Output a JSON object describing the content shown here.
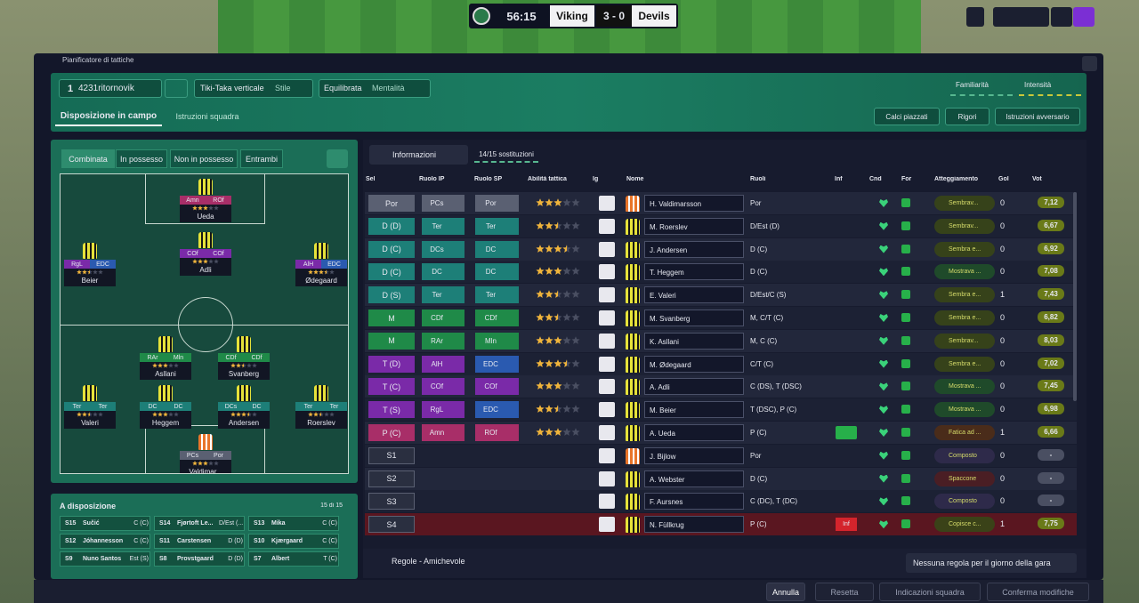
{
  "scoreboard": {
    "time": "56:15",
    "home": "Viking",
    "score": "3 - 0",
    "away": "Devils"
  },
  "breadcrumb": "Pianificatore di tattiche",
  "toolbar": {
    "formation_number": "1",
    "formation": "4231ritornovik",
    "style": "Tiki-Taka verticale",
    "style_label": "Stile",
    "mentality": "Equilibrata",
    "mentality_label": "Mentalità",
    "familiarity": "Familiarità",
    "intensity": "Intensità"
  },
  "tabs": [
    "Disposizione in campo",
    "Istruzioni squadra"
  ],
  "actions": [
    "Calci piazzati",
    "Rigori",
    "Istruzioni avversario"
  ],
  "pitch_tabs": [
    "Combinata",
    "In possesso",
    "Non in possesso",
    "Entrambi"
  ],
  "pitch_players": [
    {
      "name": "Ueda",
      "roles": [
        "Amn",
        "ROf"
      ],
      "stars": 3
    },
    {
      "name": "Beier",
      "roles": [
        "RgL",
        "EDC"
      ],
      "stars": 2.5
    },
    {
      "name": "Adli",
      "roles": [
        "COf",
        "COf"
      ],
      "stars": 3
    },
    {
      "name": "Ødegaard",
      "roles": [
        "AlH",
        "EDC"
      ],
      "stars": 3.5
    },
    {
      "name": "Asllani",
      "roles": [
        "RAr",
        "Mln"
      ],
      "stars": 3
    },
    {
      "name": "Svanberg",
      "roles": [
        "CDf",
        "CDf"
      ],
      "stars": 2.5
    },
    {
      "name": "Valeri",
      "roles": [
        "Ter",
        "Ter"
      ],
      "stars": 2.5
    },
    {
      "name": "Heggem",
      "roles": [
        "DC",
        "DC"
      ],
      "stars": 3
    },
    {
      "name": "Andersen",
      "roles": [
        "DCs",
        "DC"
      ],
      "stars": 3.5
    },
    {
      "name": "Roerslev",
      "roles": [
        "Ter",
        "Ter"
      ],
      "stars": 2.5
    },
    {
      "name": "Valdimar...",
      "roles": [
        "PCs",
        "Por"
      ],
      "stars": 3
    }
  ],
  "bench": {
    "title": "A disposizione",
    "count": "15 di 15",
    "players": [
      [
        "S15",
        "Sučić",
        "C (C)"
      ],
      [
        "S14",
        "Fjørtoft Le...",
        "D/Est (..."
      ],
      [
        "S13",
        "Mika",
        "C (C)"
      ],
      [
        "S12",
        "Jóhannesson",
        "C (C)"
      ],
      [
        "S11",
        "Carstensen",
        "D (D)"
      ],
      [
        "S10",
        "Kjærgaard",
        "C (C)"
      ],
      [
        "S9",
        "Nuno Santos",
        "Est (S)"
      ],
      [
        "S8",
        "Provstgaard",
        "D (D)"
      ],
      [
        "S7",
        "Albert",
        "T (C)"
      ]
    ]
  },
  "table": {
    "view": "Informazioni",
    "subs": "14/15 sostituzioni",
    "headers": [
      "Sel",
      "Ruolo IP",
      "Ruolo SP",
      "Abilità tattica",
      "Ig",
      "Nome",
      "Ruoli",
      "Inf",
      "Cnd",
      "For",
      "Atteggiamento",
      "Gol",
      "Vot"
    ],
    "rows": [
      {
        "sel": "Por",
        "ip": "PCs",
        "sp": "Por",
        "stars": 3,
        "name": "H. Valdimarsson",
        "roles": "Por",
        "mood": "Sembrav...",
        "gol": "0",
        "vot": "7,12"
      },
      {
        "sel": "D (D)",
        "ip": "Ter",
        "sp": "Ter",
        "stars": 2.5,
        "name": "M. Roerslev",
        "roles": "D/Est (D)",
        "mood": "Sembrav...",
        "gol": "0",
        "vot": "6,67"
      },
      {
        "sel": "D (C)",
        "ip": "DCs",
        "sp": "DC",
        "stars": 3.5,
        "name": "J. Andersen",
        "roles": "D (C)",
        "mood": "Sembra e...",
        "gol": "0",
        "vot": "6,92"
      },
      {
        "sel": "D (C)",
        "ip": "DC",
        "sp": "DC",
        "stars": 3,
        "name": "T. Heggem",
        "roles": "D (C)",
        "mood": "Mostrava ...",
        "gol": "0",
        "vot": "7,08"
      },
      {
        "sel": "D (S)",
        "ip": "Ter",
        "sp": "Ter",
        "stars": 2.5,
        "name": "E. Valeri",
        "roles": "D/Est/C (S)",
        "mood": "Sembra e...",
        "gol": "1",
        "vot": "7,43"
      },
      {
        "sel": "M",
        "ip": "CDf",
        "sp": "CDf",
        "stars": 2.5,
        "name": "M. Svanberg",
        "roles": "M, C/T (C)",
        "mood": "Sembra e...",
        "gol": "0",
        "vot": "6,82"
      },
      {
        "sel": "M",
        "ip": "RAr",
        "sp": "Mln",
        "stars": 3,
        "name": "K. Asllani",
        "roles": "M, C (C)",
        "mood": "Sembrav...",
        "gol": "0",
        "vot": "8,03"
      },
      {
        "sel": "T (D)",
        "ip": "AlH",
        "sp": "EDC",
        "stars": 3.5,
        "name": "M. Ødegaard",
        "roles": "C/T (C)",
        "mood": "Sembra e...",
        "gol": "0",
        "vot": "7,02"
      },
      {
        "sel": "T (C)",
        "ip": "COf",
        "sp": "COf",
        "stars": 3,
        "name": "A. Adli",
        "roles": "C (DS), T (DSC)",
        "mood": "Mostrava ...",
        "gol": "0",
        "vot": "7,45"
      },
      {
        "sel": "T (S)",
        "ip": "RgL",
        "sp": "EDC",
        "stars": 2.5,
        "name": "M. Beier",
        "roles": "T (DSC), P (C)",
        "mood": "Mostrava ...",
        "gol": "0",
        "vot": "6,98"
      },
      {
        "sel": "P (C)",
        "ip": "Amn",
        "sp": "ROf",
        "stars": 3,
        "name": "A. Ueda",
        "roles": "P (C)",
        "mood": "Fatica ad ...",
        "gol": "1",
        "vot": "6,66"
      },
      {
        "sel": "S1",
        "name": "J. Bijlow",
        "roles": "Por",
        "mood": "Composto",
        "gol": "0",
        "vot": "-"
      },
      {
        "sel": "S2",
        "name": "A. Webster",
        "roles": "D (C)",
        "mood": "Spaccone",
        "gol": "0",
        "vot": "-"
      },
      {
        "sel": "S3",
        "name": "F. Aursnes",
        "roles": "C (DC), T (DC)",
        "mood": "Composto",
        "gol": "0",
        "vot": "-"
      },
      {
        "sel": "S4",
        "name": "N. Füllkrug",
        "roles": "P (C)",
        "inf": "Inf",
        "mood": "Copisce c...",
        "gol": "1",
        "vot": "7,75"
      }
    ]
  },
  "footer": {
    "rules": "Regole - Amichevole",
    "rule_note": "Nessuna regola per il giorno della gara"
  },
  "buttons": [
    "Annulla",
    "Resetta",
    "Indicazioni squadra",
    "Conferma modifiche"
  ]
}
